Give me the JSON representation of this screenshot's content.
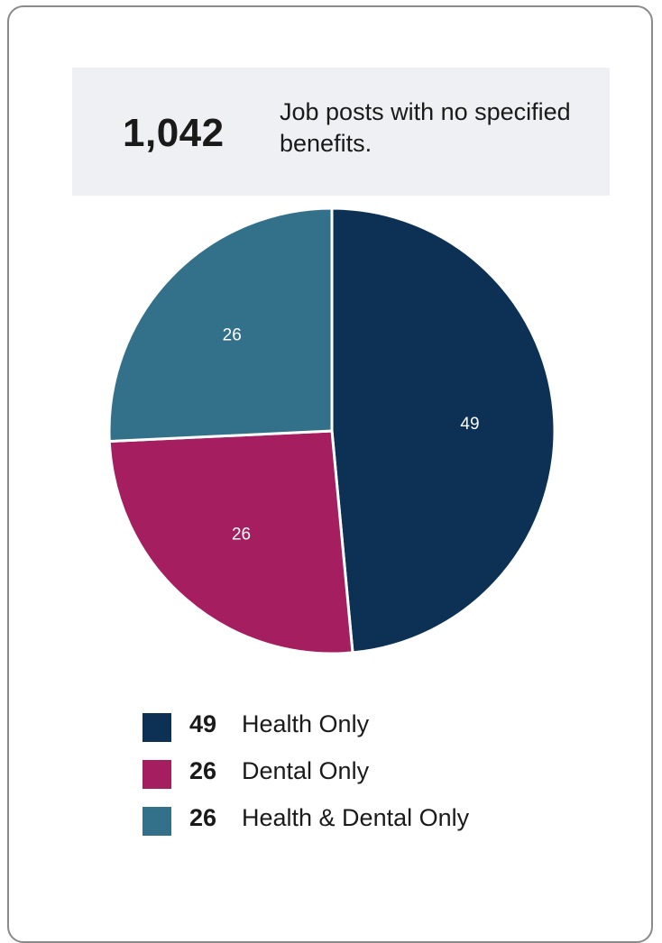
{
  "stat": {
    "number": "1,042",
    "description": "Job posts with no specified benefits."
  },
  "chart_data": {
    "type": "pie",
    "categories": [
      "Health Only",
      "Dental Only",
      "Health & Dental Only"
    ],
    "values": [
      49,
      26,
      26
    ],
    "colors": [
      "#0c3155",
      "#a41e60",
      "#33718a"
    ],
    "start_angle_deg": 0,
    "direction": "clockwise",
    "data_labels": [
      "49",
      "26",
      "26"
    ],
    "legend_placement": "bottom"
  },
  "legend": {
    "items": [
      {
        "value": "49",
        "label": "Health Only",
        "color": "#0c3155"
      },
      {
        "value": "26",
        "label": "Dental Only",
        "color": "#a41e60"
      },
      {
        "value": "26",
        "label": "Health & Dental Only",
        "color": "#33718a"
      }
    ]
  }
}
